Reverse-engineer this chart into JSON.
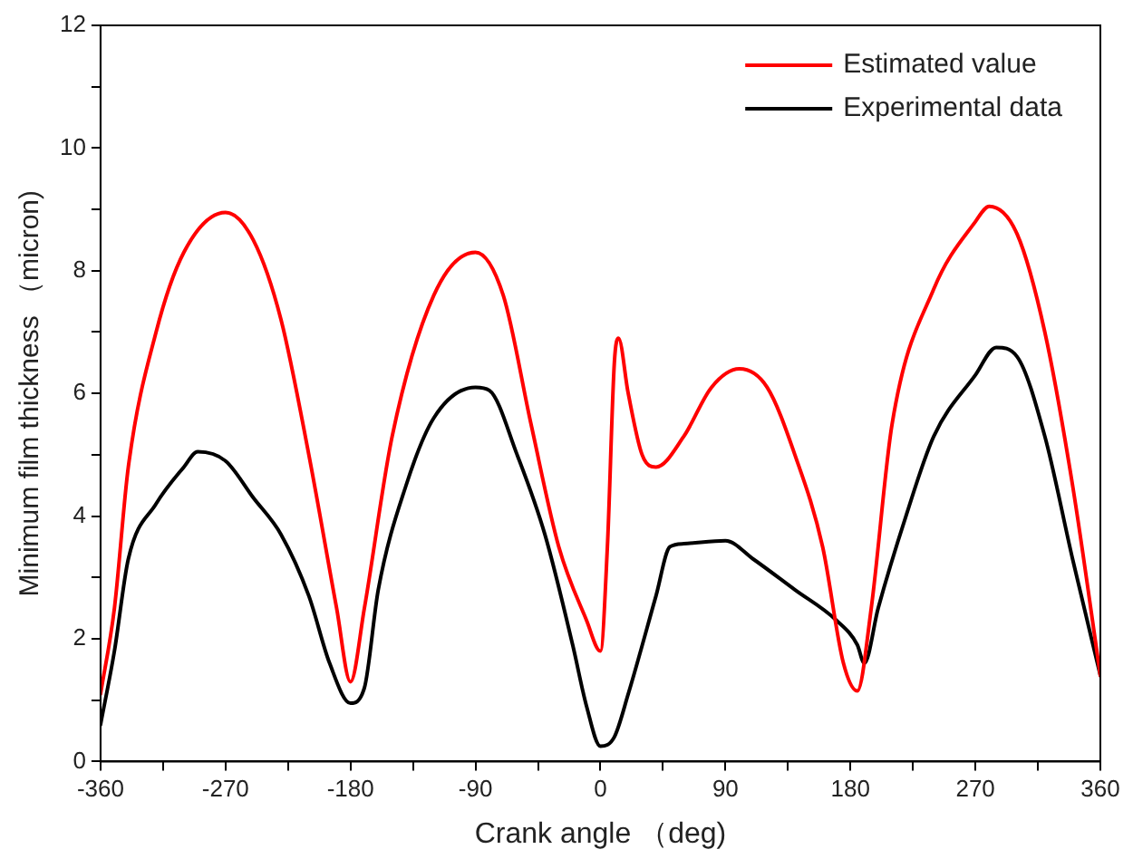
{
  "chart_data": {
    "type": "line",
    "xlabel": "Crank angle （deg)",
    "ylabel": "Minimum film thickness （micron)",
    "xlim": [
      -360,
      360
    ],
    "xticks": [
      -360,
      -270,
      -180,
      -90,
      0,
      90,
      180,
      270,
      360
    ],
    "ylim": [
      0,
      12
    ],
    "yticks": [
      0,
      2,
      4,
      6,
      8,
      10,
      12
    ],
    "grid": false,
    "legend": "top right",
    "marker": "none",
    "line_style": "solid",
    "series": [
      {
        "name": "Estimated value",
        "color": "#ff0000",
        "x": [
          -360,
          -350,
          -340,
          -320,
          -300,
          -270,
          -250,
          -230,
          -210,
          -190,
          -180,
          -170,
          -150,
          -120,
          -90,
          -70,
          -50,
          -30,
          -10,
          0,
          5,
          10,
          13,
          20,
          30,
          40,
          60,
          80,
          100,
          120,
          140,
          160,
          175,
          185,
          195,
          210,
          240,
          270,
          280,
          300,
          320,
          340,
          360
        ],
        "values": [
          1.1,
          2.5,
          4.8,
          7.0,
          8.3,
          8.95,
          8.5,
          7.2,
          5.0,
          2.5,
          1.3,
          2.5,
          5.3,
          7.6,
          8.3,
          7.6,
          5.5,
          3.5,
          2.3,
          1.8,
          3.5,
          6.5,
          6.9,
          6.0,
          5.0,
          4.8,
          5.3,
          6.1,
          6.4,
          6.1,
          5.0,
          3.5,
          1.6,
          1.15,
          2.5,
          5.5,
          7.7,
          8.8,
          9.05,
          8.6,
          7.0,
          4.5,
          1.4
        ]
      },
      {
        "name": "Experimental data",
        "color": "#000000",
        "x": [
          -360,
          -350,
          -340,
          -320,
          -300,
          -290,
          -270,
          -250,
          -230,
          -210,
          -195,
          -180,
          -170,
          -160,
          -140,
          -120,
          -90,
          -80,
          -60,
          -40,
          -20,
          -10,
          0,
          10,
          20,
          40,
          50,
          60,
          90,
          110,
          140,
          170,
          185,
          190,
          200,
          220,
          240,
          270,
          285,
          300,
          320,
          340,
          360
        ],
        "values": [
          0.6,
          1.8,
          3.3,
          4.2,
          4.8,
          5.05,
          4.9,
          4.3,
          3.7,
          2.7,
          1.6,
          0.95,
          1.2,
          2.8,
          4.5,
          5.6,
          6.1,
          6.05,
          5.0,
          3.7,
          1.9,
          0.9,
          0.25,
          0.4,
          1.1,
          2.7,
          3.5,
          3.55,
          3.6,
          3.3,
          2.8,
          2.3,
          1.9,
          1.6,
          2.5,
          4.0,
          5.3,
          6.3,
          6.75,
          6.6,
          5.3,
          3.3,
          1.4
        ]
      }
    ]
  }
}
